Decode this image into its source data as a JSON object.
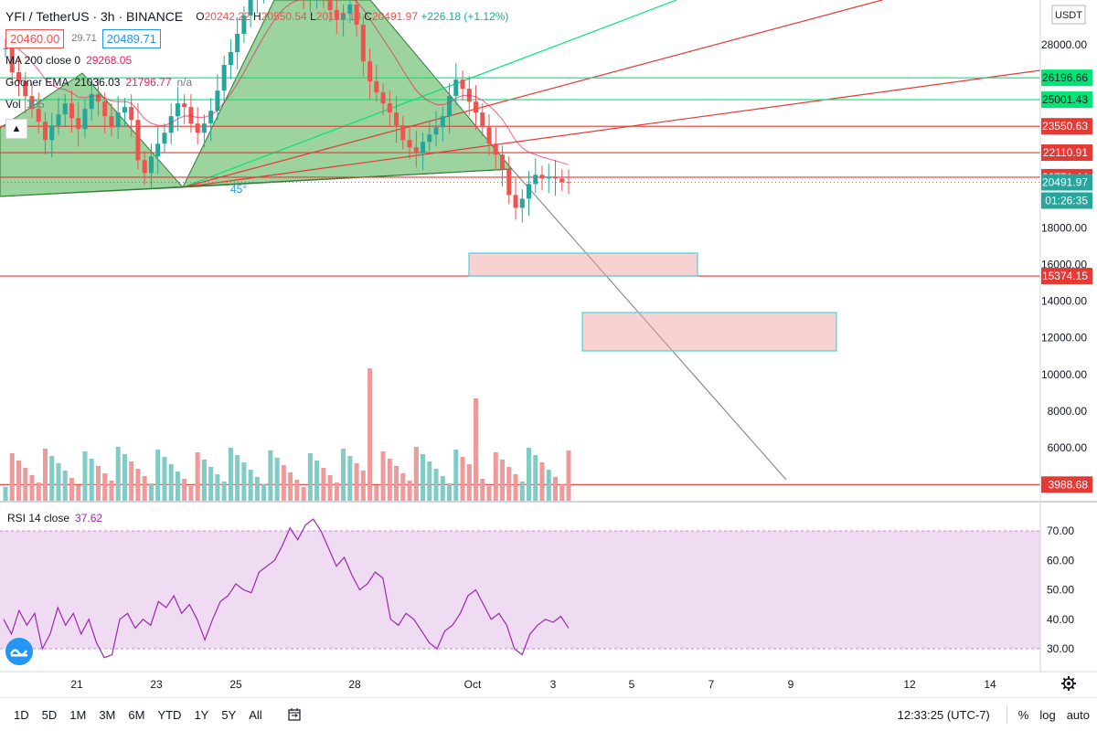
{
  "symbol": {
    "title": "YFI / TetherUS · 3h · BINANCE",
    "ohlc": {
      "o_label": "O",
      "o": "20242.22",
      "h_label": "H",
      "h": "20550.54",
      "l_label": "L",
      "l": "20112.18",
      "c_label": "C",
      "c": "20491.97",
      "change": "+226.18 (+1.12%)"
    },
    "sell_price": "20460.00",
    "spread": "29.71",
    "buy_price": "20489.71"
  },
  "indicators": [
    {
      "name": "MA 200 close 0",
      "values": [
        "29268.05"
      ],
      "colors": [
        "#e91e63"
      ]
    },
    {
      "name": "Gooner EMA",
      "values": [
        "21036.03",
        "21796.77",
        "n/a"
      ],
      "colors": [
        "#131722",
        "#e91e63",
        "#787b86"
      ]
    },
    {
      "name": "Vol",
      "values": [
        "105"
      ],
      "colors": [
        "#26a69a"
      ]
    }
  ],
  "rsi": {
    "label": "RSI 14 close",
    "value": "37.62",
    "levels": [
      "70.00",
      "60.00",
      "50.00",
      "40.00",
      "30.00"
    ]
  },
  "currency_badge": "USDT",
  "price_axis_ticks": [
    "28000.00",
    "18000.00",
    "16000.00",
    "14000.00",
    "12000.00",
    "10000.00",
    "8000.00",
    "6000.00"
  ],
  "price_labels": [
    {
      "text": "26196.66",
      "color": "#00e676",
      "fg": "#131722"
    },
    {
      "text": "25001.43",
      "color": "#00e676",
      "fg": "#131722"
    },
    {
      "text": "23550.63",
      "color": "#e53935",
      "fg": "#ffffff"
    },
    {
      "text": "22110.91",
      "color": "#e53935",
      "fg": "#ffffff"
    },
    {
      "text": "20771.44",
      "color": "#e53935",
      "fg": "#ffffff"
    },
    {
      "text": "20491.97",
      "color": "#26a69a",
      "fg": "#ffffff"
    },
    {
      "text": "01:26:35",
      "color": "#26a69a",
      "fg": "#ffffff"
    },
    {
      "text": "15374.15",
      "color": "#e53935",
      "fg": "#ffffff"
    },
    {
      "text": "3988.68",
      "color": "#e53935",
      "fg": "#ffffff"
    }
  ],
  "angle_label": "45°",
  "time_axis_labels": [
    "21",
    "23",
    "25",
    "28",
    "Oct",
    "3",
    "5",
    "7",
    "9",
    "12",
    "14"
  ],
  "timeframes": [
    "1D",
    "5D",
    "1M",
    "3M",
    "6M",
    "YTD",
    "1Y",
    "5Y",
    "All"
  ],
  "clock": "12:33:25 (UTC-7)",
  "scale_options": [
    "%",
    "log",
    "auto"
  ],
  "icons": {
    "goto_date": "calendar-range-icon",
    "settings": "gear-icon",
    "collapse": "chevron-up-icon",
    "logo": "tradingview-logo-icon"
  },
  "colors": {
    "up": "#26a69a",
    "down": "#ef5350",
    "rsi": "#9c27b0",
    "support": "#e53935",
    "resistance": "#00e676",
    "pattern_fill": "#4caf50"
  }
}
